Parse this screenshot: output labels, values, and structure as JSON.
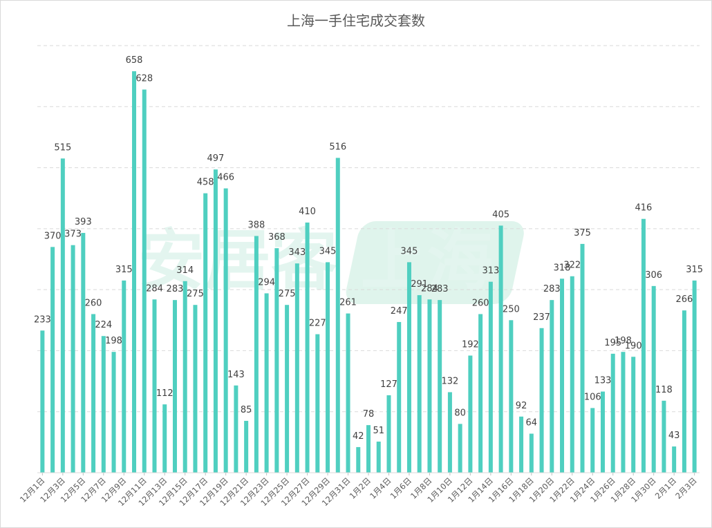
{
  "chart_data": {
    "type": "bar",
    "title": "上海一手住宅成交套数",
    "watermark": "安居客 上海",
    "bar_color": "#4fcfc0",
    "grid": true,
    "ylim": [
      0,
      700
    ],
    "categories": [
      "12月1日",
      "12月2日",
      "12月3日",
      "12月4日",
      "12月5日",
      "12月6日",
      "12月7日",
      "12月8日",
      "12月9日",
      "12月10日",
      "12月11日",
      "12月12日",
      "12月13日",
      "12月14日",
      "12月15日",
      "12月16日",
      "12月17日",
      "12月18日",
      "12月19日",
      "12月20日",
      "12月21日",
      "12月22日",
      "12月23日",
      "12月24日",
      "12月25日",
      "12月26日",
      "12月27日",
      "12月28日",
      "12月29日",
      "12月30日",
      "12月31日",
      "1月1日",
      "1月2日",
      "1月3日",
      "1月4日",
      "1月5日",
      "1月6日",
      "1月7日",
      "1月8日",
      "1月9日",
      "1月10日",
      "1月11日",
      "1月12日",
      "1月13日",
      "1月14日",
      "1月15日",
      "1月16日",
      "1月17日",
      "1月18日",
      "1月19日",
      "1月20日",
      "1月21日",
      "1月22日",
      "1月23日",
      "1月24日",
      "1月25日",
      "1月26日",
      "1月27日",
      "1月28日",
      "1月29日",
      "1月30日",
      "1月31日",
      "2月1日",
      "2月2日",
      "2月3日"
    ],
    "values": [
      233,
      370,
      515,
      373,
      393,
      260,
      224,
      198,
      315,
      658,
      628,
      284,
      112,
      283,
      314,
      275,
      458,
      497,
      466,
      143,
      85,
      388,
      294,
      368,
      275,
      343,
      410,
      227,
      345,
      516,
      261,
      42,
      78,
      51,
      127,
      247,
      345,
      291,
      284,
      283,
      132,
      80,
      192,
      260,
      313,
      405,
      250,
      92,
      64,
      237,
      283,
      318,
      322,
      375,
      106,
      133,
      195,
      198,
      190,
      416,
      306,
      118,
      43,
      266,
      315
    ],
    "value_labels": [
      "233",
      "370",
      "515",
      "373",
      "393",
      "260",
      "224",
      "198",
      "315",
      "658",
      "628",
      "284",
      "112",
      "283",
      "314",
      "275",
      "458",
      "497",
      "466",
      "143",
      "85",
      "388",
      "294",
      "368",
      "275",
      "343",
      "410",
      "227",
      "345",
      "516",
      "261",
      "42",
      "78",
      "51",
      "127",
      "247",
      "345",
      "291",
      "284",
      "283",
      "132",
      "80",
      "192",
      "260",
      "313",
      "405",
      "250",
      "92",
      "64",
      "237",
      "283",
      "318",
      "322",
      "375",
      "106",
      "133",
      "195",
      "198",
      "190",
      "416",
      "306",
      "118",
      "43",
      "266",
      "315"
    ],
    "shown_tick_labels": [
      "12月1日",
      "12月3日",
      "12月5日",
      "12月7日",
      "12月9日",
      "12月11日",
      "12月13日",
      "12月15日",
      "12月17日",
      "12月19日",
      "12月21日",
      "12月23日",
      "12月25日",
      "12月27日",
      "12月29日",
      "12月31日",
      "1月2日",
      "1月4日",
      "1月6日",
      "1月8日",
      "1月10日",
      "1月12日",
      "1月14日",
      "1月16日",
      "1月18日",
      "1月20日",
      "1月22日",
      "1月24日",
      "1月26日",
      "1月28日",
      "1月30日",
      "2月1日",
      "2月3日"
    ]
  }
}
